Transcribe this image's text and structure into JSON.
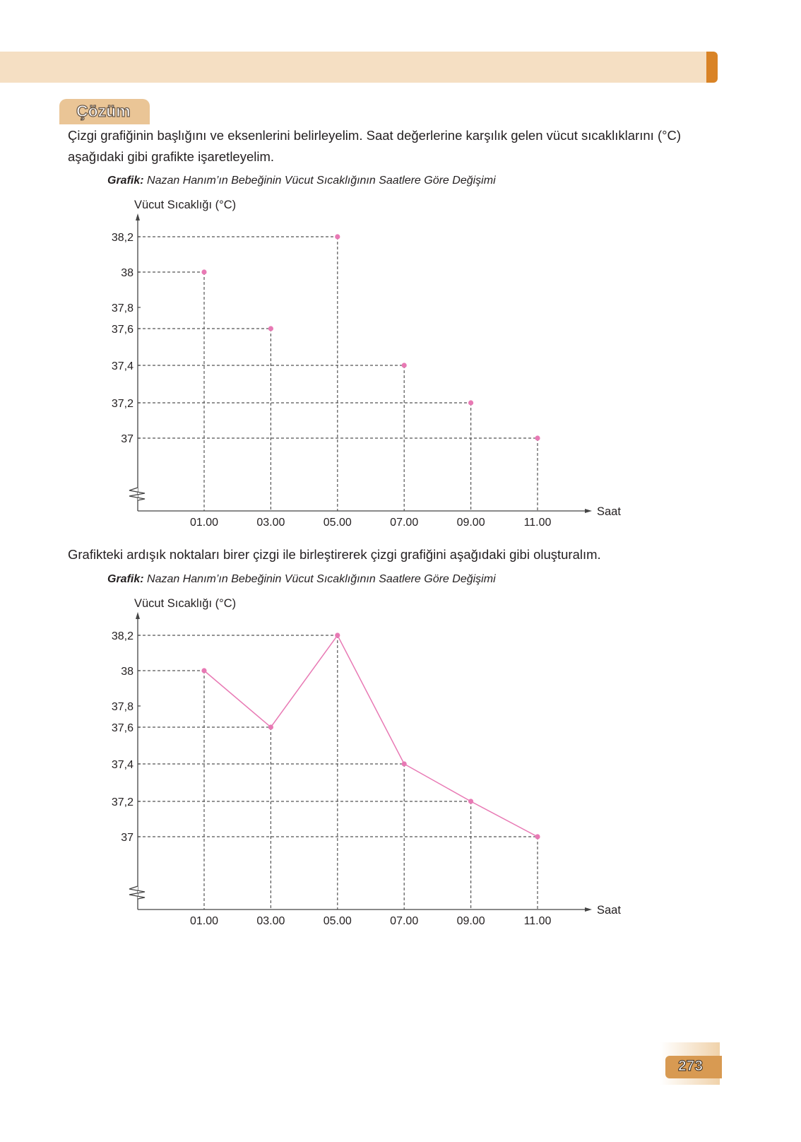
{
  "header": {
    "section_label": "Çözüm"
  },
  "intro_text": "Çizgi grafiğinin başlığını ve eksenlerini belirleyelim. Saat değerlerine karşılık gelen vücut sıcaklıklarını (°C) aşağıdaki gibi grafikte işaretleyelim.",
  "middle_text": "Grafikteki ardışık noktaları birer çizgi ile birleştirerek çizgi grafiğini aşağıdaki gibi oluşturalım.",
  "page_number": "273",
  "colors": {
    "band": "#f5dfc3",
    "accent": "#d98326",
    "point": "#e879b4",
    "line": "#e879b4"
  },
  "chart_data": [
    {
      "type": "scatter",
      "title_prefix": "Grafik:",
      "title": "Nazan Hanım’ın Bebeğinin Vücut Sıcaklığının Saatlere Göre Değişimi",
      "ylabel": "Vücut Sıcaklığı (°C)",
      "xlabel": "Saat",
      "categories": [
        "01.00",
        "03.00",
        "05.00",
        "07.00",
        "09.00",
        "11.00"
      ],
      "values": [
        38,
        37.6,
        38.2,
        37.4,
        37.2,
        37
      ],
      "yticks": [
        "38,2",
        "38",
        "37,8",
        "37,6",
        "37,4",
        "37,2",
        "37"
      ],
      "ytick_values": [
        38.2,
        38,
        37.8,
        37.6,
        37.4,
        37.2,
        37
      ],
      "axis_break": true,
      "guide_lines": "dashed"
    },
    {
      "type": "line",
      "title_prefix": "Grafik:",
      "title": "Nazan Hanım’ın Bebeğinin Vücut Sıcaklığının Saatlere Göre Değişimi",
      "ylabel": "Vücut Sıcaklığı (°C)",
      "xlabel": "Saat",
      "categories": [
        "01.00",
        "03.00",
        "05.00",
        "07.00",
        "09.00",
        "11.00"
      ],
      "values": [
        38,
        37.6,
        38.2,
        37.4,
        37.2,
        37
      ],
      "yticks": [
        "38,2",
        "38",
        "37,8",
        "37,6",
        "37,4",
        "37,2",
        "37"
      ],
      "ytick_values": [
        38.2,
        38,
        37.8,
        37.6,
        37.4,
        37.2,
        37
      ],
      "axis_break": true,
      "guide_lines": "dashed"
    }
  ]
}
